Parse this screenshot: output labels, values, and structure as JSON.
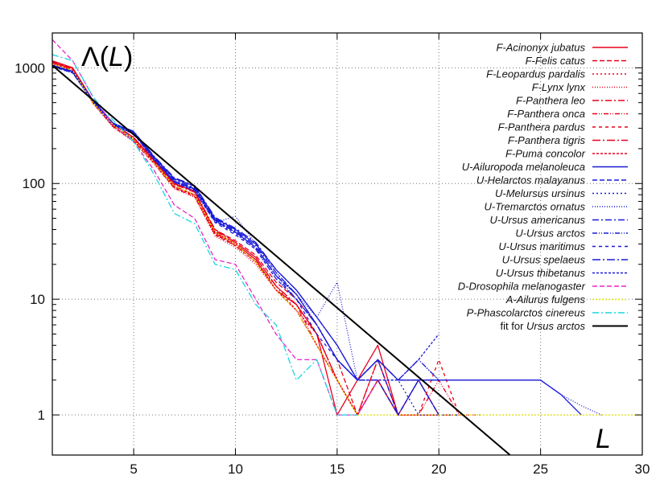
{
  "chart_data": {
    "type": "line",
    "title": "",
    "xlabel": "L",
    "ylabel": "Λ(L)",
    "ylabel_parts": {
      "prefix": "Λ(",
      "var": "L",
      "suffix": ")"
    },
    "xlim": [
      1,
      30
    ],
    "ylim": [
      0.45,
      2000
    ],
    "yscale": "log",
    "grid": true,
    "legend_position": "top-right",
    "xticks": [
      5,
      10,
      15,
      20,
      25,
      30
    ],
    "xtick_labels": [
      "5",
      "10",
      "15",
      "20",
      "25",
      "30"
    ],
    "yticks": [
      1,
      10,
      100,
      1000
    ],
    "ytick_labels": [
      "1",
      "10",
      "100",
      "1000"
    ],
    "series": [
      {
        "name": "F-Acinonyx jubatus",
        "color": "#e8001c",
        "dash": "",
        "x": [
          1,
          2,
          3,
          4,
          5,
          6,
          7,
          8,
          9,
          10,
          11,
          12,
          13,
          14,
          15,
          16,
          17,
          18,
          19,
          20
        ],
        "y": [
          1150,
          1000,
          520,
          330,
          250,
          160,
          100,
          85,
          38,
          30,
          22,
          12,
          9,
          5,
          1,
          2,
          4,
          1,
          1,
          1
        ]
      },
      {
        "name": "F-Felis catus",
        "color": "#e8001c",
        "dash": "6,3",
        "x": [
          1,
          2,
          3,
          4,
          5,
          6,
          7,
          8,
          9,
          10,
          11,
          12,
          13,
          14,
          15,
          16,
          17,
          18,
          19,
          20
        ],
        "y": [
          1120,
          980,
          510,
          320,
          240,
          155,
          95,
          80,
          40,
          32,
          24,
          14,
          10,
          6,
          3,
          1,
          2,
          1,
          1,
          1
        ]
      },
      {
        "name": "F-Leopardus pardalis",
        "color": "#e8001c",
        "dash": "2,3",
        "x": [
          1,
          2,
          3,
          4,
          5,
          6,
          7,
          8,
          9,
          10,
          11,
          12,
          13,
          14,
          15,
          16,
          17,
          18,
          19,
          20
        ],
        "y": [
          1100,
          960,
          500,
          310,
          235,
          150,
          92,
          78,
          36,
          29,
          21,
          13,
          8,
          5,
          2,
          1,
          3,
          1,
          2,
          1
        ]
      },
      {
        "name": "F-Lynx lynx",
        "color": "#e8001c",
        "dash": "1,2",
        "x": [
          1,
          2,
          3,
          4,
          5,
          6,
          7,
          8,
          9,
          10,
          11,
          12,
          13,
          14,
          15,
          16,
          17,
          18,
          19,
          20
        ],
        "y": [
          1080,
          940,
          490,
          305,
          230,
          148,
          90,
          76,
          35,
          28,
          20,
          12,
          8,
          4,
          2,
          1,
          2,
          1,
          1,
          1
        ]
      },
      {
        "name": "F-Panthera leo",
        "color": "#e8001c",
        "dash": "8,3,2,3",
        "x": [
          1,
          2,
          3,
          4,
          5,
          6,
          7,
          8,
          9,
          10,
          11,
          12,
          13,
          14,
          15,
          16,
          17,
          18,
          19,
          20,
          21
        ],
        "y": [
          1130,
          990,
          515,
          325,
          245,
          158,
          98,
          84,
          39,
          31,
          23,
          13,
          9,
          5,
          2,
          1,
          3,
          1,
          2,
          1,
          1
        ]
      },
      {
        "name": "F-Panthera onca",
        "color": "#e8001c",
        "dash": "6,2,1,2,1,2",
        "x": [
          1,
          2,
          3,
          4,
          5,
          6,
          7,
          8,
          9,
          10,
          11,
          12,
          13,
          14,
          15,
          16,
          17,
          18,
          19,
          20,
          21
        ],
        "y": [
          1110,
          970,
          505,
          315,
          240,
          152,
          94,
          80,
          37,
          30,
          22,
          12,
          9,
          4,
          2,
          1,
          2,
          1,
          1,
          2,
          1
        ]
      },
      {
        "name": "F-Panthera pardus",
        "color": "#e8001c",
        "dash": "4,4",
        "x": [
          1,
          2,
          3,
          4,
          5,
          6,
          7,
          8,
          9,
          10,
          11,
          12,
          13,
          14,
          15,
          16,
          17,
          18,
          19,
          20,
          21,
          22
        ],
        "y": [
          1090,
          950,
          495,
          308,
          232,
          149,
          91,
          77,
          36,
          29,
          21,
          12,
          8,
          4,
          2,
          1,
          3,
          1,
          1,
          3,
          1,
          1
        ]
      },
      {
        "name": "F-Panthera tigris",
        "color": "#e8001c",
        "dash": "10,3,2,3",
        "x": [
          1,
          2,
          3,
          4,
          5,
          6,
          7,
          8,
          9,
          10,
          11,
          12,
          13,
          14,
          15,
          16,
          17,
          18,
          19,
          20,
          21
        ],
        "y": [
          1140,
          995,
          518,
          328,
          248,
          159,
          99,
          86,
          40,
          31,
          23,
          13,
          9,
          5,
          2,
          1,
          2,
          1,
          1,
          1,
          1
        ]
      },
      {
        "name": "F-Puma concolor",
        "color": "#e8001c",
        "dash": "3,2",
        "x": [
          1,
          2,
          3,
          4,
          5,
          6,
          7,
          8,
          9,
          10,
          11,
          12,
          13,
          14,
          15,
          16,
          17,
          18,
          19,
          20
        ],
        "y": [
          1105,
          965,
          500,
          312,
          238,
          151,
          93,
          79,
          37,
          29,
          21,
          12,
          8,
          5,
          2,
          1,
          2,
          1,
          1,
          1
        ]
      },
      {
        "name": "U-Ailuropoda melanoleuca",
        "color": "#1a1ad6",
        "dash": "",
        "x": [
          1,
          2,
          3,
          4,
          5,
          6,
          7,
          8,
          9,
          10,
          11,
          12,
          13,
          14,
          15,
          16,
          17,
          18,
          19,
          20,
          21,
          22,
          23,
          24,
          25,
          26,
          27
        ],
        "y": [
          1050,
          930,
          520,
          330,
          280,
          170,
          110,
          95,
          50,
          40,
          30,
          18,
          12,
          7,
          4,
          2,
          3,
          2,
          2,
          2,
          2,
          2,
          2,
          2,
          2,
          1.5,
          1
        ]
      },
      {
        "name": "U-Helarctos malayanus",
        "color": "#1a1ad6",
        "dash": "6,3",
        "x": [
          1,
          2,
          3,
          4,
          5,
          6,
          7,
          8,
          9,
          10,
          11,
          12,
          13,
          14,
          15,
          16,
          17,
          18,
          19,
          20
        ],
        "y": [
          1040,
          920,
          515,
          325,
          275,
          165,
          105,
          90,
          48,
          38,
          28,
          16,
          11,
          6,
          3,
          2,
          3,
          1,
          2,
          1
        ]
      },
      {
        "name": "U-Melursus ursinus",
        "color": "#1a1ad6",
        "dash": "2,3",
        "x": [
          1,
          2,
          3,
          4,
          5,
          6,
          7,
          8,
          9,
          10,
          11,
          12,
          13,
          14,
          15,
          16,
          17,
          18,
          19,
          20
        ],
        "y": [
          1030,
          910,
          510,
          320,
          270,
          162,
          103,
          88,
          47,
          37,
          27,
          15,
          10,
          6,
          3,
          2,
          2,
          2,
          1,
          1
        ]
      },
      {
        "name": "U-Tremarctos ornatus",
        "color": "#1a1ad6",
        "dash": "1,2",
        "x": [
          1,
          2,
          3,
          4,
          5,
          6,
          7,
          8,
          9,
          10,
          11,
          12,
          13,
          14,
          15,
          16,
          17,
          18,
          19,
          20,
          21,
          22,
          23,
          24,
          25,
          26,
          27,
          28
        ],
        "y": [
          1020,
          900,
          505,
          318,
          268,
          160,
          102,
          86,
          46,
          52,
          30,
          17,
          11,
          7,
          14,
          2,
          3,
          2,
          3,
          2,
          2,
          2,
          2,
          2,
          2,
          1.5,
          1.2,
          1
        ]
      },
      {
        "name": "U-Ursus americanus",
        "color": "#1a1ad6",
        "dash": "8,3,2,3",
        "x": [
          1,
          2,
          3,
          4,
          5,
          6,
          7,
          8,
          9,
          10,
          11,
          12,
          13,
          14,
          15,
          16,
          17,
          18,
          19,
          20
        ],
        "y": [
          1045,
          925,
          518,
          328,
          278,
          168,
          108,
          92,
          49,
          39,
          29,
          17,
          11,
          6,
          3,
          2,
          2,
          1,
          2,
          1
        ]
      },
      {
        "name": "U-Ursus arctos",
        "color": "#1a1ad6",
        "dash": "6,2,1,2,1,2",
        "x": [
          1,
          2,
          3,
          4,
          5,
          6,
          7,
          8,
          9,
          10,
          11,
          12,
          13,
          14,
          15,
          16,
          17,
          18,
          19,
          20
        ],
        "y": [
          1035,
          915,
          512,
          322,
          272,
          163,
          104,
          89,
          47,
          38,
          28,
          16,
          10,
          6,
          3,
          2,
          3,
          2,
          3,
          2
        ]
      },
      {
        "name": "U-Ursus maritimus",
        "color": "#1a1ad6",
        "dash": "4,4",
        "x": [
          1,
          2,
          3,
          4,
          5,
          6,
          7,
          8,
          9,
          10,
          11,
          12,
          13,
          14,
          15,
          16,
          17,
          18,
          19,
          20,
          21
        ],
        "y": [
          1025,
          905,
          508,
          319,
          269,
          161,
          102,
          87,
          46,
          36,
          27,
          15,
          10,
          5,
          3,
          2,
          2,
          1,
          2,
          1,
          1
        ]
      },
      {
        "name": "U-Ursus spelaeus",
        "color": "#1a1ad6",
        "dash": "10,3,2,3",
        "x": [
          1,
          2,
          3,
          4,
          5,
          6,
          7,
          8,
          9,
          10,
          11,
          12,
          13,
          14,
          15,
          16,
          17,
          18,
          19,
          20
        ],
        "y": [
          1055,
          935,
          522,
          332,
          282,
          172,
          112,
          96,
          51,
          41,
          31,
          18,
          12,
          7,
          4,
          2,
          3,
          2,
          2,
          2
        ]
      },
      {
        "name": "U-Ursus thibetanus",
        "color": "#1a1ad6",
        "dash": "3,2",
        "x": [
          1,
          2,
          3,
          4,
          5,
          6,
          7,
          8,
          9,
          10,
          11,
          12,
          13,
          14,
          15,
          16,
          17,
          18,
          19,
          20
        ],
        "y": [
          1038,
          918,
          514,
          324,
          274,
          164,
          105,
          90,
          48,
          38,
          28,
          16,
          11,
          6,
          3,
          2,
          2,
          2,
          3,
          5
        ]
      },
      {
        "name": "D-Drosophila melanogaster",
        "color": "#e826c8",
        "dash": "6,3",
        "x": [
          1,
          2,
          3,
          4,
          5,
          6,
          7,
          8,
          9,
          10,
          11,
          12,
          13,
          14,
          15,
          16,
          17
        ],
        "y": [
          1750,
          1150,
          560,
          320,
          230,
          130,
          65,
          50,
          22,
          20,
          10,
          5,
          3,
          3,
          1,
          1,
          2
        ]
      },
      {
        "name": "A-Ailurus fulgens",
        "color": "#e6e600",
        "dash": "2,2",
        "x": [
          1,
          2,
          3,
          4,
          5,
          6,
          7,
          8,
          9,
          10,
          11,
          12,
          13,
          14,
          15,
          16,
          17,
          18,
          19,
          20,
          21,
          22,
          23,
          24,
          25,
          26,
          27,
          28,
          29,
          30
        ],
        "y": [
          1080,
          950,
          500,
          320,
          240,
          150,
          95,
          80,
          38,
          30,
          21,
          12,
          8,
          4,
          2,
          1,
          1,
          1,
          1,
          1,
          1,
          1,
          1,
          1,
          1,
          1,
          1,
          1,
          1,
          1
        ]
      },
      {
        "name": "P-Phascolarctos cinereus",
        "color": "#1ad6e0",
        "dash": "8,3,2,3",
        "x": [
          1,
          2,
          3,
          4,
          5,
          6,
          7,
          8,
          9,
          10,
          11,
          12,
          13,
          14,
          15,
          16
        ],
        "y": [
          1300,
          1150,
          560,
          350,
          230,
          120,
          55,
          45,
          20,
          18,
          9,
          6,
          2,
          3,
          1,
          1
        ]
      },
      {
        "name": "fit for Ursus arctos",
        "color": "#000000",
        "dash": "",
        "x": [
          1,
          23.5
        ],
        "y": [
          1050,
          0.45
        ]
      }
    ]
  }
}
